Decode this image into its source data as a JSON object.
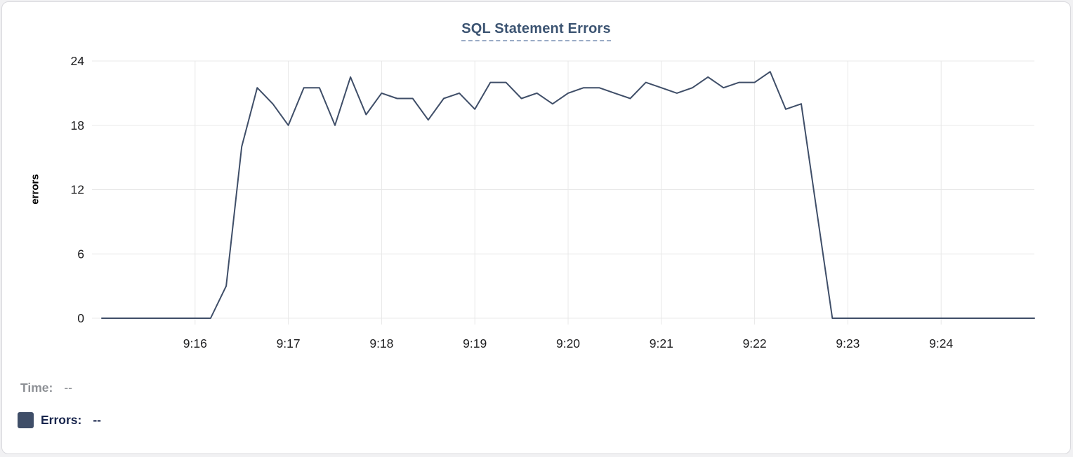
{
  "chart_data": {
    "type": "line",
    "title": "SQL Statement Errors",
    "xlabel": "",
    "ylabel": "errors",
    "x_ticks": [
      "9:16",
      "9:17",
      "9:18",
      "9:19",
      "9:20",
      "9:21",
      "9:22",
      "9:23",
      "9:24"
    ],
    "y_ticks": [
      0,
      6,
      12,
      18,
      24
    ],
    "ylim": [
      0,
      24
    ],
    "x_range": [
      "9:15:00",
      "9:25:00"
    ],
    "sample_interval_seconds": 10,
    "grid": true,
    "legend_position": "bottom-left",
    "series": [
      {
        "name": "Errors",
        "color": "#3f4e68",
        "times": [
          "9:15:00",
          "9:15:10",
          "9:15:20",
          "9:15:30",
          "9:15:40",
          "9:15:50",
          "9:16:00",
          "9:16:10",
          "9:16:20",
          "9:16:30",
          "9:16:40",
          "9:16:50",
          "9:17:00",
          "9:17:10",
          "9:17:20",
          "9:17:30",
          "9:17:40",
          "9:17:50",
          "9:18:00",
          "9:18:10",
          "9:18:20",
          "9:18:30",
          "9:18:40",
          "9:18:50",
          "9:19:00",
          "9:19:10",
          "9:19:20",
          "9:19:30",
          "9:19:40",
          "9:19:50",
          "9:20:00",
          "9:20:10",
          "9:20:20",
          "9:20:30",
          "9:20:40",
          "9:20:50",
          "9:21:00",
          "9:21:10",
          "9:21:20",
          "9:21:30",
          "9:21:40",
          "9:21:50",
          "9:22:00",
          "9:22:10",
          "9:22:20",
          "9:22:30",
          "9:22:40",
          "9:22:50",
          "9:23:00",
          "9:23:10",
          "9:23:20",
          "9:23:30",
          "9:23:40",
          "9:23:50",
          "9:24:00",
          "9:24:10",
          "9:24:20",
          "9:24:30",
          "9:24:40",
          "9:24:50",
          "9:25:00"
        ],
        "values": [
          0,
          0,
          0,
          0,
          0,
          0,
          0,
          0,
          3,
          16,
          21.5,
          20,
          18,
          21.5,
          21.5,
          18,
          22.5,
          19,
          21,
          20.5,
          20.5,
          18.5,
          20.5,
          21,
          19.5,
          22,
          22,
          20.5,
          21,
          20,
          21,
          21.5,
          21.5,
          21,
          20.5,
          22,
          21.5,
          21,
          21.5,
          22.5,
          21.5,
          22,
          22,
          23,
          19.5,
          20,
          10,
          0,
          0,
          0,
          0,
          0,
          0,
          0,
          0,
          0,
          0,
          0,
          0,
          0,
          0
        ]
      }
    ]
  },
  "tooltip": {
    "time_label": "Time:",
    "time_value": "--",
    "errors_label": "Errors:",
    "errors_value": "--"
  },
  "colors": {
    "line": "#3f4e68",
    "grid": "#e8e8e8",
    "tick_text": "#1c1c1e",
    "title": "#3c5472",
    "title_underline": "#9aabc6",
    "time_text": "#8d9095",
    "errors_text": "#19264d",
    "card_border": "#d9d9dd"
  }
}
